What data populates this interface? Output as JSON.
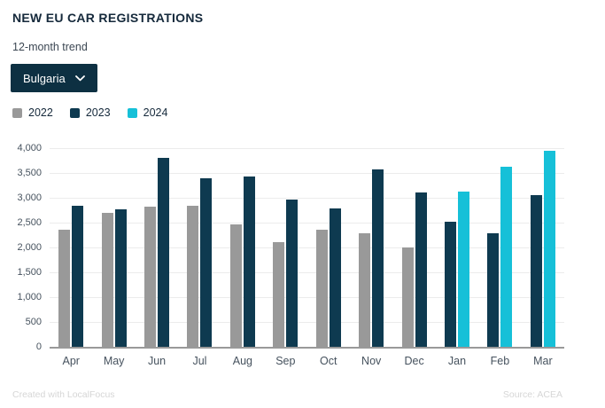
{
  "header": {
    "title": "NEW EU CAR REGISTRATIONS",
    "subtitle": "12-month trend"
  },
  "filter": {
    "selected": "Bulgaria"
  },
  "legend": [
    {
      "label": "2022",
      "color": "#999999"
    },
    {
      "label": "2023",
      "color": "#0e3a50"
    },
    {
      "label": "2024",
      "color": "#16c0d8"
    }
  ],
  "chart_data": {
    "type": "bar",
    "title": "NEW EU CAR REGISTRATIONS",
    "subtitle": "12-month trend",
    "categories": [
      "Apr",
      "May",
      "Jun",
      "Jul",
      "Aug",
      "Sep",
      "Oct",
      "Nov",
      "Dec",
      "Jan",
      "Feb",
      "Mar"
    ],
    "series": [
      {
        "name": "2022",
        "color": "#999999",
        "values": [
          2360,
          2700,
          2830,
          2840,
          2470,
          2100,
          2360,
          2290,
          2000,
          null,
          null,
          null
        ]
      },
      {
        "name": "2023",
        "color": "#0e3a50",
        "values": [
          2840,
          2770,
          3810,
          3400,
          3420,
          2970,
          2780,
          3580,
          3110,
          2510,
          2280,
          3050
        ]
      },
      {
        "name": "2024",
        "color": "#16c0d8",
        "values": [
          null,
          null,
          null,
          null,
          null,
          null,
          null,
          null,
          null,
          3120,
          3620,
          3950
        ]
      }
    ],
    "xlabel": "",
    "ylabel": "",
    "ylim": [
      0,
      4000
    ],
    "yticks": [
      0,
      500,
      1000,
      1500,
      2000,
      2500,
      3000,
      3500,
      4000
    ],
    "ytick_labels": [
      "0",
      "500",
      "1,000",
      "1,500",
      "2,000",
      "2,500",
      "3,000",
      "3,500",
      "4,000"
    ],
    "grid": true,
    "legend_position": "top-left"
  },
  "footer": {
    "left": "Created with LocalFocus",
    "right": "Source: ACEA"
  }
}
